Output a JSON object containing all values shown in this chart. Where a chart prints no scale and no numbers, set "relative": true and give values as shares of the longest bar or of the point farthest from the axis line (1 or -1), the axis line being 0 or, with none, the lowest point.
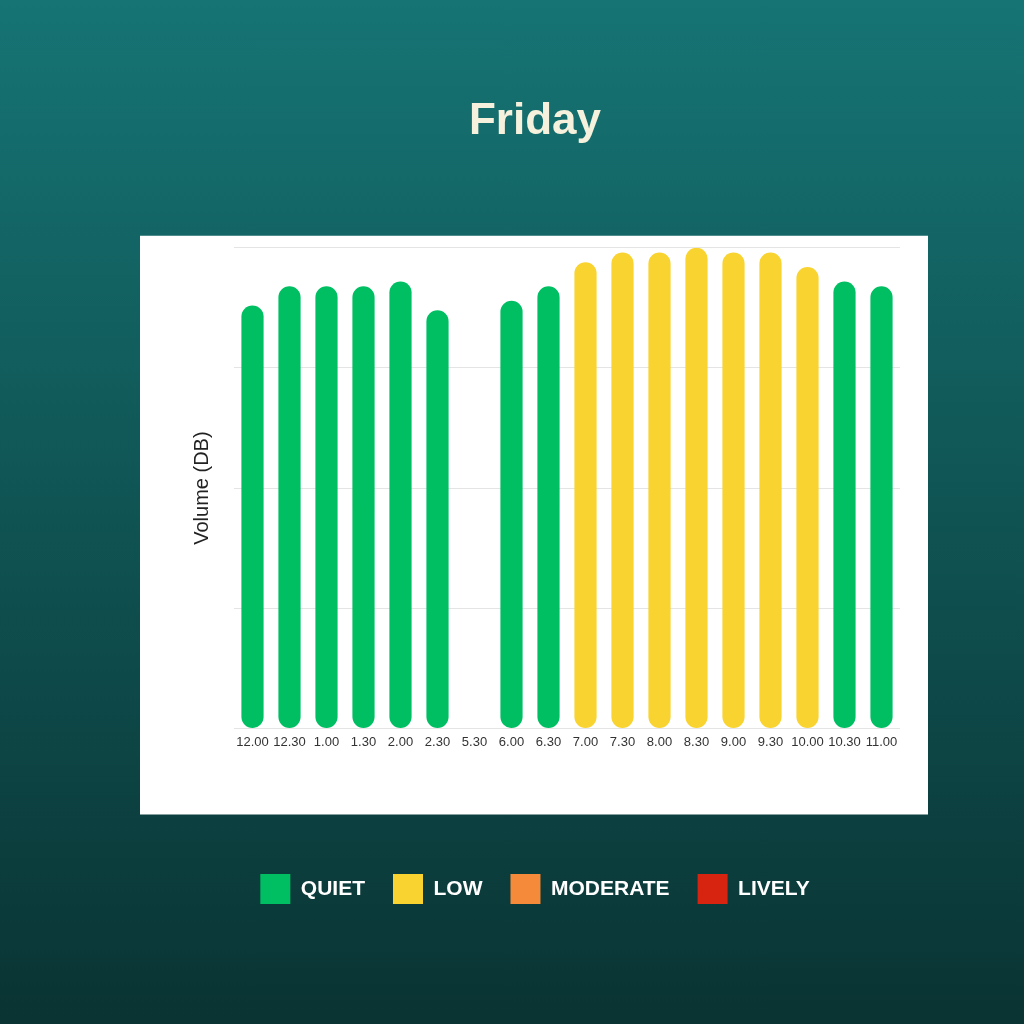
{
  "chart_data": {
    "type": "bar",
    "title": "Friday",
    "ylabel": "Volume (DB)",
    "relative": true,
    "stacked": true,
    "grid": "y",
    "legend": "bottom",
    "categories": [
      "12.00",
      "12.30",
      "1.00",
      "1.30",
      "2.00",
      "2.30",
      "5.30",
      "6.00",
      "6.30",
      "7.00",
      "7.30",
      "8.00",
      "8.30",
      "9.00",
      "9.30",
      "10.00",
      "10.30",
      "11.00"
    ],
    "series": [
      {
        "name": "QUIET",
        "color": "#00bf63",
        "values": [
          0.88,
          0.92,
          0.92,
          0.92,
          0.93,
          0.87,
          null,
          0.89,
          0.92,
          null,
          null,
          null,
          null,
          null,
          null,
          null,
          0.93,
          0.92
        ]
      },
      {
        "name": "LOW",
        "color": "#f9d32f",
        "values": [
          null,
          null,
          null,
          null,
          null,
          null,
          null,
          null,
          null,
          0.97,
          0.99,
          0.99,
          1,
          0.99,
          0.99,
          0.96,
          null,
          null
        ]
      },
      {
        "name": "MODERATE",
        "color": "#f58a3a",
        "values": [
          null,
          null,
          null,
          null,
          null,
          null,
          null,
          null,
          null,
          null,
          null,
          null,
          null,
          null,
          null,
          null,
          null,
          null
        ]
      },
      {
        "name": "LIVELY",
        "color": "#d62410",
        "values": [
          null,
          null,
          null,
          null,
          null,
          null,
          null,
          null,
          null,
          null,
          null,
          null,
          null,
          null,
          null,
          null,
          null,
          null
        ]
      }
    ]
  }
}
